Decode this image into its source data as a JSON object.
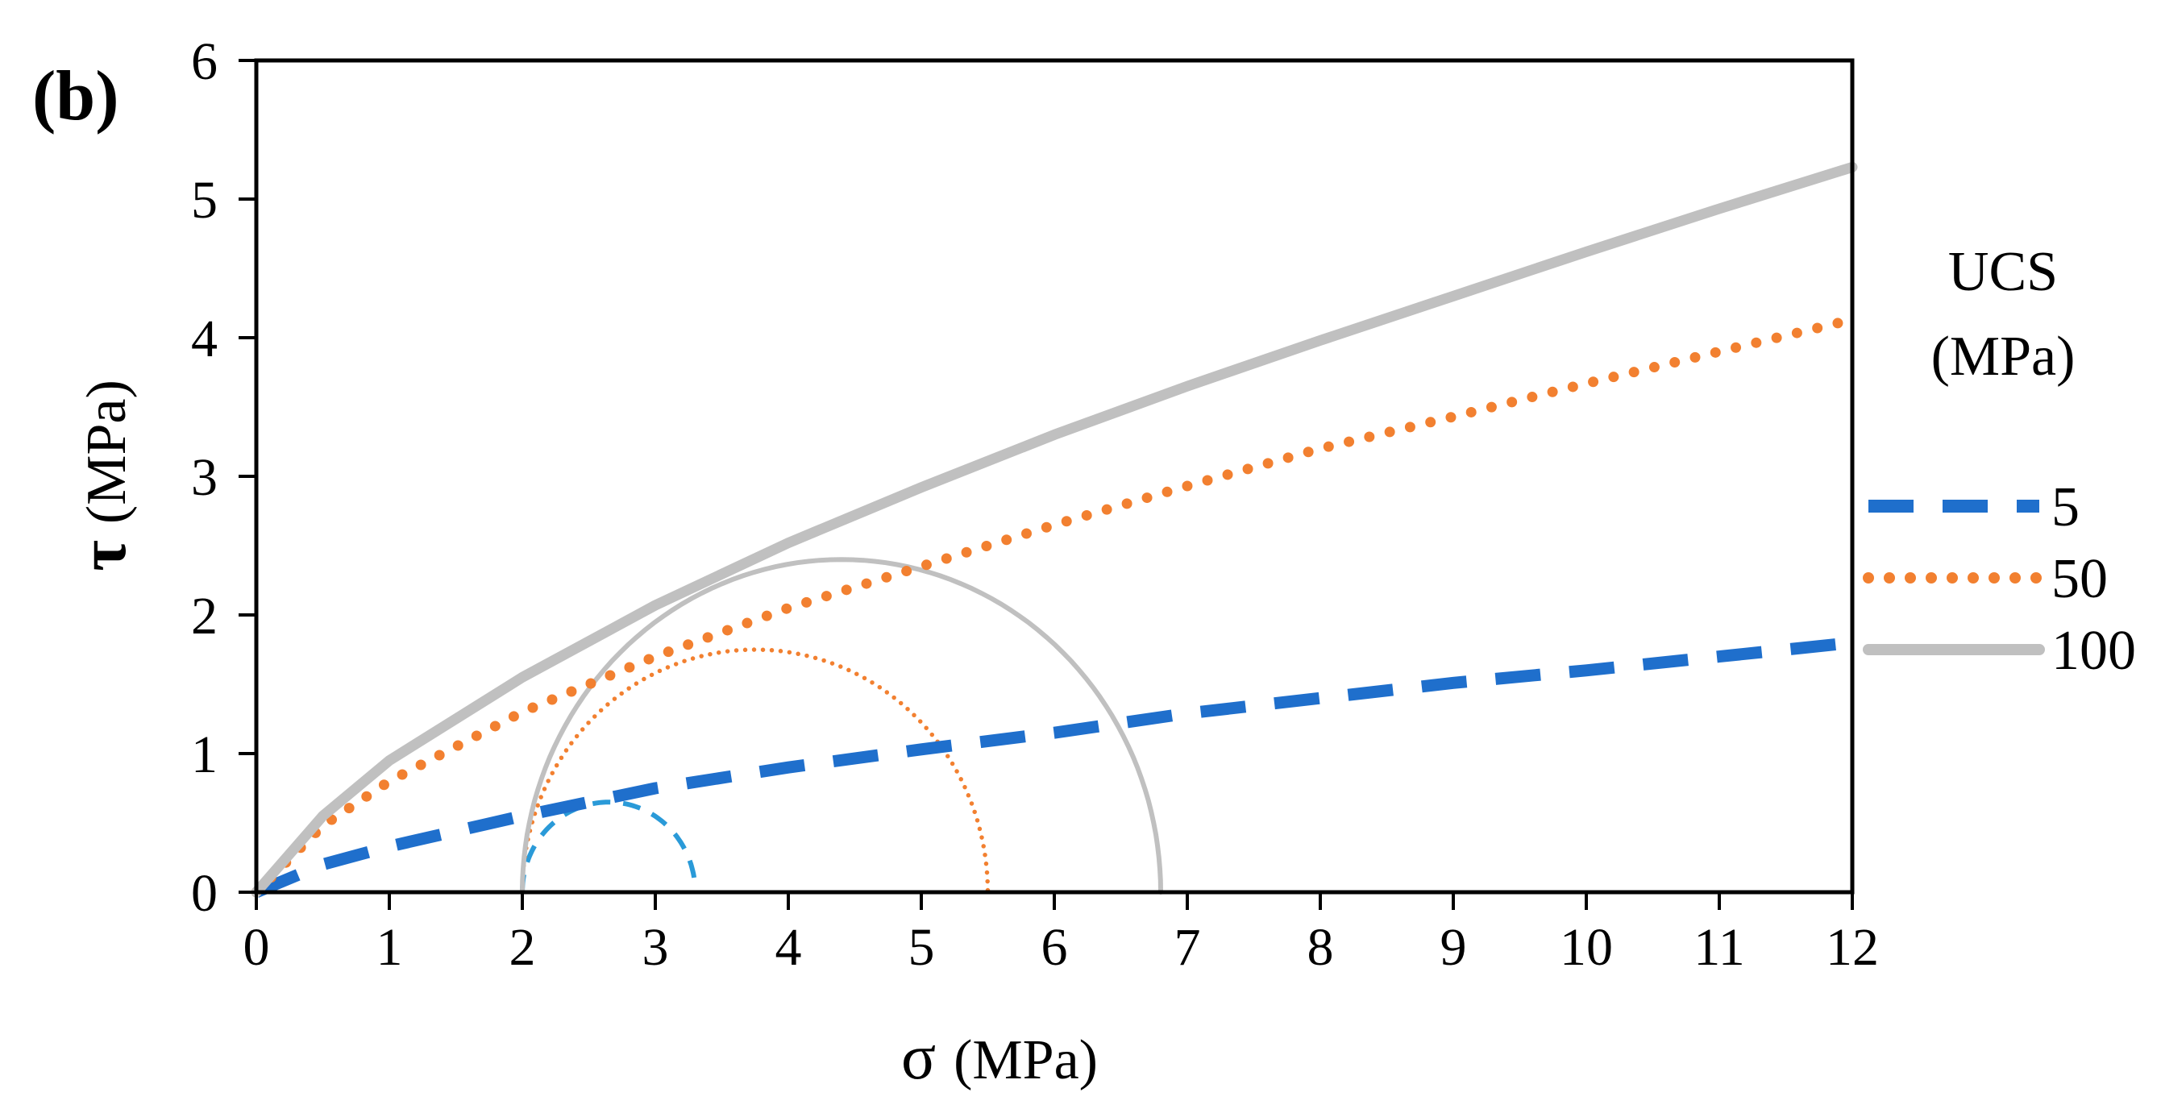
{
  "chart_data": {
    "type": "line",
    "panel_label": "(b)",
    "xlabel": {
      "symbol": "σ",
      "units": "(MPa)"
    },
    "ylabel": {
      "symbol": "τ",
      "units": "(MPa)"
    },
    "xlim": [
      0,
      12
    ],
    "ylim": [
      0,
      6
    ],
    "xticks": [
      "0",
      "1",
      "2",
      "3",
      "4",
      "5",
      "6",
      "7",
      "8",
      "9",
      "10",
      "11",
      "12"
    ],
    "yticks": [
      "0",
      "1",
      "2",
      "3",
      "4",
      "5",
      "6"
    ],
    "grid": false,
    "legend": {
      "position": "right",
      "title_line1": "UCS",
      "title_line2": "(MPa)",
      "entries": [
        {
          "label": "5",
          "color": "#1f6fcc",
          "style": "dashed"
        },
        {
          "label": "50",
          "color": "#f28030",
          "style": "dotted"
        },
        {
          "label": "100",
          "color": "#c0c0c0",
          "style": "solid"
        }
      ]
    },
    "series": [
      {
        "name": "5",
        "color": "#1f6fcc",
        "style": "dashed",
        "envelope": {
          "x": [
            0,
            0.5,
            1,
            2,
            3,
            4,
            5,
            6,
            7,
            8,
            9,
            10,
            11,
            12
          ],
          "y": [
            0,
            0.2,
            0.33,
            0.55,
            0.75,
            0.9,
            1.03,
            1.15,
            1.29,
            1.4,
            1.51,
            1.6,
            1.7,
            1.8
          ]
        },
        "mohr_circle": {
          "sigma3": 2.0,
          "sigma1": 3.3,
          "color": "#2a9ad8"
        }
      },
      {
        "name": "50",
        "color": "#f28030",
        "style": "dotted",
        "envelope": {
          "x": [
            0,
            0.5,
            1,
            2,
            3,
            4,
            5,
            6,
            7,
            8,
            9,
            10,
            11,
            12
          ],
          "y": [
            0,
            0.48,
            0.8,
            1.3,
            1.7,
            2.05,
            2.35,
            2.65,
            2.93,
            3.2,
            3.43,
            3.67,
            3.9,
            4.13
          ]
        },
        "mohr_circle": {
          "sigma3": 2.0,
          "sigma1": 5.5,
          "color": "#f28030"
        }
      },
      {
        "name": "100",
        "color": "#c0c0c0",
        "style": "solid",
        "envelope": {
          "x": [
            0,
            0.5,
            1,
            2,
            3,
            4,
            5,
            6,
            7,
            8,
            9,
            10,
            11,
            12
          ],
          "y": [
            0,
            0.55,
            0.95,
            1.55,
            2.07,
            2.52,
            2.92,
            3.3,
            3.65,
            3.98,
            4.3,
            4.62,
            4.93,
            5.23
          ]
        },
        "mohr_circle": {
          "sigma3": 2.0,
          "sigma1": 6.8,
          "color": "#c0c0c0"
        }
      }
    ]
  }
}
